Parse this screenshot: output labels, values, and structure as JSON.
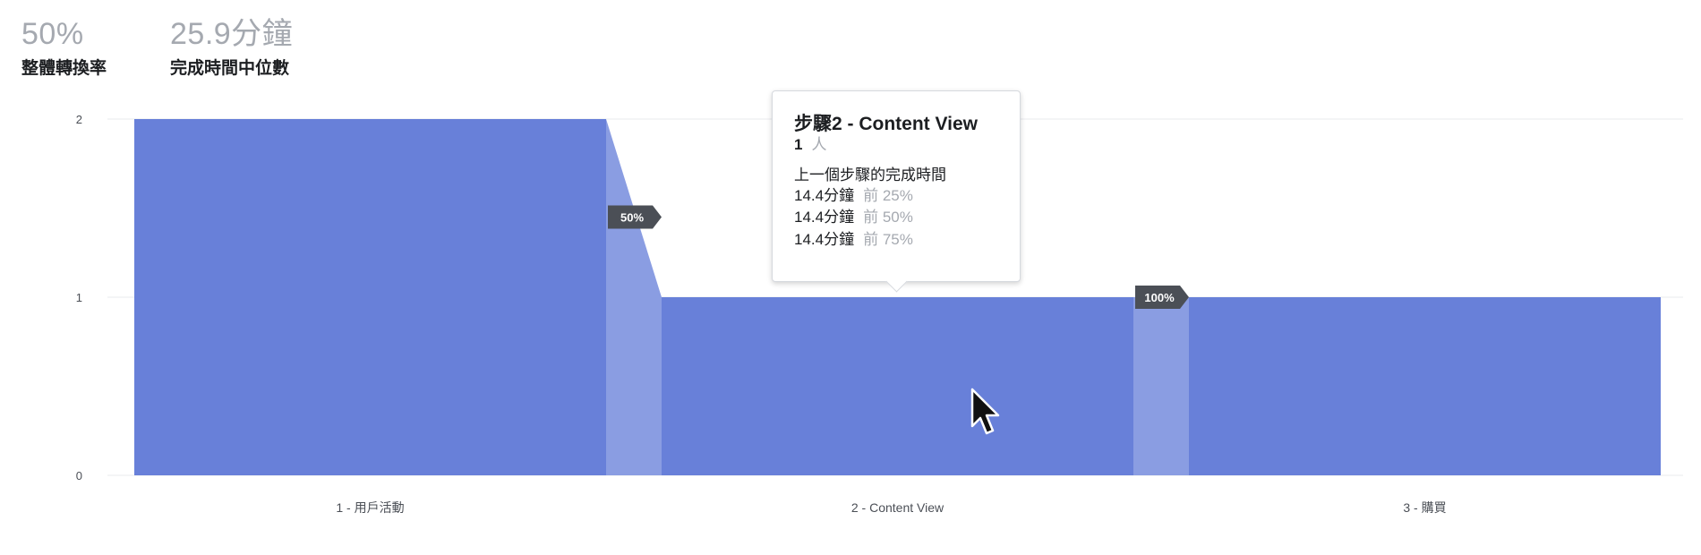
{
  "stats": {
    "conversion_value": "50%",
    "conversion_label": "整體轉換率",
    "duration_value": "25.9分鐘",
    "duration_label": "完成時間中位數"
  },
  "chart_data": {
    "type": "area",
    "categories": [
      "1 - 用戶活動",
      "2 - Content View",
      "3 - 購買"
    ],
    "values": [
      2,
      1,
      1
    ],
    "yticks": [
      0,
      1,
      2
    ],
    "ylim": [
      0,
      2
    ],
    "step_conversion_labels": [
      "50%",
      "100%"
    ],
    "grid": true,
    "color": "#6880d9",
    "transition_color": "#8a9de2"
  },
  "tooltip": {
    "title": "步驟2 - Content View",
    "count": "1",
    "count_unit": "人",
    "section_label": "上一個步驟的完成時間",
    "rows": [
      {
        "value": "14.4分鐘",
        "pct": "前 25%"
      },
      {
        "value": "14.4分鐘",
        "pct": "前 50%"
      },
      {
        "value": "14.4分鐘",
        "pct": "前 75%"
      }
    ]
  }
}
